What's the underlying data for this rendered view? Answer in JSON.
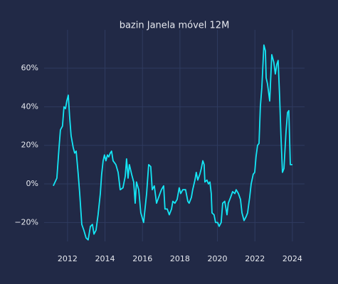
{
  "chart_data": {
    "type": "line",
    "title": "bazin Janela móvel 12M",
    "x": [
      2011.24,
      2011.43,
      2011.54,
      2011.62,
      2011.73,
      2011.81,
      2011.89,
      2011.96,
      2012.04,
      2012.11,
      2012.19,
      2012.3,
      2012.38,
      2012.46,
      2012.57,
      2012.65,
      2012.76,
      2012.87,
      2012.99,
      2013.1,
      2013.22,
      2013.33,
      2013.41,
      2013.52,
      2013.63,
      2013.75,
      2013.82,
      2013.9,
      2013.97,
      2014.05,
      2014.13,
      2014.2,
      2014.28,
      2014.35,
      2014.43,
      2014.58,
      2014.7,
      2014.81,
      2014.96,
      2015.08,
      2015.15,
      2015.23,
      2015.3,
      2015.42,
      2015.53,
      2015.61,
      2015.68,
      2015.8,
      2015.91,
      2016.06,
      2016.22,
      2016.33,
      2016.44,
      2016.52,
      2016.63,
      2016.75,
      2016.86,
      2017.01,
      2017.13,
      2017.2,
      2017.32,
      2017.43,
      2017.55,
      2017.62,
      2017.73,
      2017.85,
      2017.96,
      2018.04,
      2018.15,
      2018.3,
      2018.42,
      2018.49,
      2018.61,
      2018.68,
      2018.8,
      2018.87,
      2018.95,
      2019.06,
      2019.14,
      2019.22,
      2019.29,
      2019.33,
      2019.44,
      2019.52,
      2019.6,
      2019.67,
      2019.71,
      2019.82,
      2019.9,
      2020.01,
      2020.09,
      2020.2,
      2020.28,
      2020.39,
      2020.51,
      2020.58,
      2020.7,
      2020.81,
      2020.93,
      2021.0,
      2021.12,
      2021.23,
      2021.31,
      2021.42,
      2021.53,
      2021.61,
      2021.72,
      2021.8,
      2021.91,
      2021.99,
      2022.06,
      2022.14,
      2022.22,
      2022.29,
      2022.37,
      2022.48,
      2022.56,
      2022.6,
      2022.67,
      2022.79,
      2022.9,
      2023.01,
      2023.09,
      2023.17,
      2023.24,
      2023.32,
      2023.39,
      2023.47,
      2023.55,
      2023.66,
      2023.74,
      2023.81,
      2023.89,
      2024.0
    ],
    "series": [
      {
        "name": "bazin",
        "color": "#14e6f5",
        "values": [
          -1,
          3,
          18,
          28,
          30,
          40,
          39,
          43,
          46,
          35,
          25,
          19,
          16,
          17,
          5,
          -5,
          -21,
          -24,
          -28,
          -29,
          -22,
          -21,
          -26,
          -24,
          -16,
          -5,
          5,
          12,
          15,
          12,
          15,
          14,
          16,
          17,
          12,
          10,
          6,
          -3,
          -2,
          4,
          13,
          3,
          10,
          5,
          1,
          -10,
          1,
          -3,
          -15,
          -20,
          -5,
          10,
          9,
          -3,
          -1,
          -10,
          -7,
          -3,
          -1,
          -13,
          -13,
          -16,
          -13,
          -9,
          -10,
          -8,
          -2,
          -5,
          -3,
          -3,
          -9,
          -10,
          -7,
          -3,
          2,
          6,
          2,
          5,
          8,
          12,
          10,
          1,
          2,
          0,
          1,
          -5,
          -15,
          -16,
          -20,
          -20,
          -22,
          -20,
          -10,
          -9,
          -16,
          -10,
          -7,
          -4,
          -5,
          -3,
          -5,
          -8,
          -15,
          -19,
          -17,
          -15,
          -7,
          0,
          5,
          6,
          14,
          20,
          21,
          40,
          50,
          72,
          69,
          55,
          52,
          43,
          67,
          63,
          57,
          62,
          64,
          45,
          25,
          6,
          8,
          27,
          37,
          38,
          10,
          10
        ]
      }
    ],
    "xlim": [
      2010.75,
      2024.65
    ],
    "ylim": [
      -29.8,
      79.9
    ],
    "xticks": [
      2012,
      2014,
      2016,
      2018,
      2020,
      2022,
      2024
    ],
    "yticks": [
      {
        "value": -20,
        "label": "−20%"
      },
      {
        "value": 0,
        "label": "0%"
      },
      {
        "value": 20,
        "label": "20%"
      },
      {
        "value": 40,
        "label": "40%"
      },
      {
        "value": 60,
        "label": "60%"
      }
    ],
    "grid": true
  }
}
